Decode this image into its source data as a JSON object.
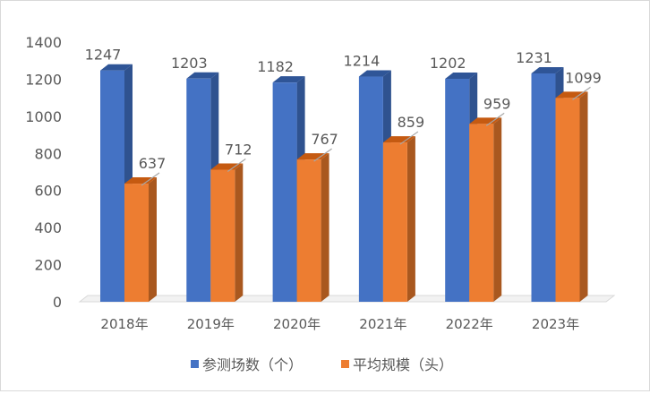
{
  "chart_data": {
    "type": "bar",
    "title": "",
    "xlabel": "",
    "ylabel": "",
    "ylim": [
      0,
      1400
    ],
    "yticks": [
      0,
      200,
      400,
      600,
      800,
      1000,
      1200,
      1400
    ],
    "categories": [
      "2018年",
      "2019年",
      "2020年",
      "2021年",
      "2022年",
      "2023年"
    ],
    "series": [
      {
        "name": "参测场数（个）",
        "values": [
          1247,
          1203,
          1182,
          1214,
          1202,
          1231
        ],
        "color": "#4472C4",
        "side": "#2F528F",
        "top": "#2F5597"
      },
      {
        "name": "平均规模（头）",
        "values": [
          637,
          712,
          767,
          859,
          959,
          1099
        ],
        "color": "#ED7D31",
        "side": "#A9581F",
        "top": "#C55A11"
      }
    ],
    "legend": "bottom",
    "grid": false,
    "style": "3d-clustered-column"
  }
}
